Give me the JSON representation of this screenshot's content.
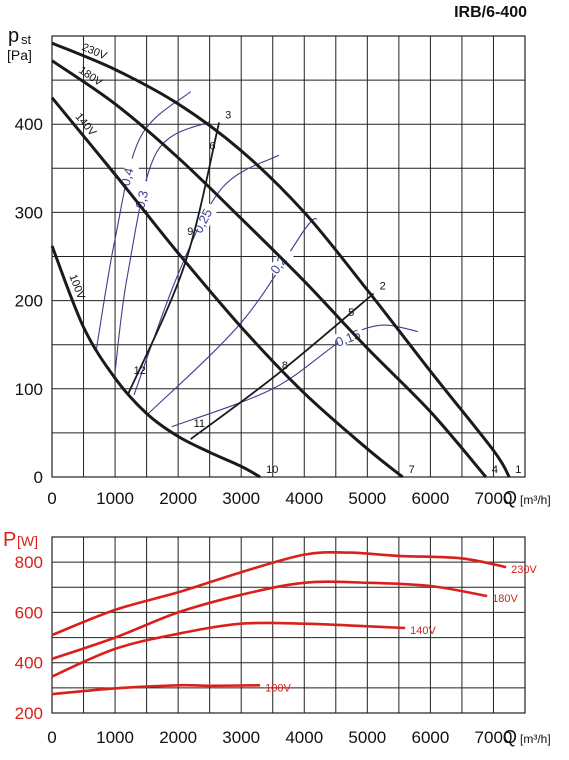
{
  "model": "IRB/6-400",
  "colors": {
    "curve": "#1a1a1a",
    "efficiency": "#3b3f8f",
    "power": "#d9201a",
    "grid": "#222222",
    "axis_label_power": "#d9201a"
  },
  "chart_data": [
    {
      "type": "line",
      "ylabel_main": "p",
      "ylabel_sub": "st",
      "ylabel_unit": "[Pa]",
      "xlabel": "Q",
      "xunit": "[m³/h]",
      "xlim": [
        0,
        7500
      ],
      "ylim": [
        0,
        500
      ],
      "x_ticks": [
        0,
        1000,
        2000,
        3000,
        4000,
        5000,
        6000,
        7000
      ],
      "y_ticks": [
        0,
        100,
        200,
        300,
        400
      ],
      "grid": true,
      "series": [
        {
          "name": "230V",
          "points": [
            [
              0,
              492
            ],
            [
              1000,
              462
            ],
            [
              2000,
              423
            ],
            [
              3000,
              370
            ],
            [
              4000,
              300
            ],
            [
              5000,
              212
            ],
            [
              6000,
              120
            ],
            [
              7000,
              30
            ],
            [
              7250,
              0
            ]
          ]
        },
        {
          "name": "180V",
          "points": [
            [
              0,
              472
            ],
            [
              1000,
              423
            ],
            [
              2000,
              362
            ],
            [
              3000,
              293
            ],
            [
              4000,
              222
            ],
            [
              5000,
              146
            ],
            [
              6000,
              74
            ],
            [
              6880,
              0
            ]
          ]
        },
        {
          "name": "140V",
          "points": [
            [
              0,
              430
            ],
            [
              1000,
              343
            ],
            [
              2000,
              254
            ],
            [
              3000,
              170
            ],
            [
              4000,
              95
            ],
            [
              5000,
              32
            ],
            [
              5560,
              0
            ]
          ]
        },
        {
          "name": "100V",
          "points": [
            [
              0,
              262
            ],
            [
              500,
              170
            ],
            [
              1000,
              112
            ],
            [
              1500,
              72
            ],
            [
              2000,
              46
            ],
            [
              2500,
              28
            ],
            [
              3000,
              12
            ],
            [
              3300,
              0
            ]
          ]
        }
      ],
      "system_lines": [
        {
          "points": [
            [
              1200,
              93
            ],
            [
              2100,
              240
            ],
            [
              2650,
              402
            ]
          ]
        },
        {
          "points": [
            [
              2200,
              43
            ],
            [
              3600,
              118
            ],
            [
              5100,
              208
            ]
          ]
        }
      ],
      "efficiency_curves": [
        {
          "label": "0,4",
          "points": [
            [
              700,
              143
            ],
            [
              1000,
              270
            ],
            [
              1400,
              385
            ],
            [
              2200,
              437
            ]
          ]
        },
        {
          "label": "0,3",
          "points": [
            [
              1000,
              120
            ],
            [
              1200,
              230
            ],
            [
              1650,
              367
            ],
            [
              2500,
              403
            ]
          ]
        },
        {
          "label": "0,25",
          "points": [
            [
              1300,
              93
            ],
            [
              2000,
              230
            ],
            [
              2700,
              328
            ],
            [
              3600,
              365
            ]
          ]
        },
        {
          "label": "0,2",
          "points": [
            [
              1500,
              70
            ],
            [
              3000,
              175
            ],
            [
              4000,
              280
            ],
            [
              4200,
              293
            ]
          ]
        },
        {
          "label": "0,15",
          "points": [
            [
              1900,
              57
            ],
            [
              3500,
              100
            ],
            [
              4600,
              155
            ],
            [
              5200,
              172
            ],
            [
              5800,
              165
            ]
          ]
        }
      ],
      "point_labels": [
        {
          "label": "1",
          "x": 7250,
          "y": 0
        },
        {
          "label": "2",
          "x": 5100,
          "y": 208
        },
        {
          "label": "3",
          "x": 2650,
          "y": 402
        },
        {
          "label": "4",
          "x": 6880,
          "y": 0
        },
        {
          "label": "5",
          "x": 4600,
          "y": 178
        },
        {
          "label": "6",
          "x": 2400,
          "y": 367
        },
        {
          "label": "7",
          "x": 5560,
          "y": 0
        },
        {
          "label": "8",
          "x": 3550,
          "y": 118
        },
        {
          "label": "9",
          "x": 2050,
          "y": 270
        },
        {
          "label": "10",
          "x": 3300,
          "y": 0
        },
        {
          "label": "11",
          "x": 2150,
          "y": 52
        },
        {
          "label": "12",
          "x": 1200,
          "y": 112
        }
      ]
    },
    {
      "type": "line",
      "ylabel_main": "P",
      "ylabel_unit": "[W]",
      "xlabel": "Q",
      "xunit": "[m³/h]",
      "xlim": [
        0,
        7500
      ],
      "ylim": [
        200,
        900
      ],
      "x_ticks": [
        0,
        1000,
        2000,
        3000,
        4000,
        5000,
        6000,
        7000
      ],
      "y_ticks": [
        200,
        400,
        600,
        800
      ],
      "grid": true,
      "series": [
        {
          "name": "230V",
          "points": [
            [
              0,
              510
            ],
            [
              1000,
              610
            ],
            [
              2000,
              680
            ],
            [
              3000,
              760
            ],
            [
              4000,
              830
            ],
            [
              4700,
              838
            ],
            [
              5500,
              825
            ],
            [
              6500,
              815
            ],
            [
              7200,
              780
            ]
          ]
        },
        {
          "name": "180V",
          "points": [
            [
              0,
              415
            ],
            [
              1000,
              500
            ],
            [
              2000,
              600
            ],
            [
              3000,
              670
            ],
            [
              4000,
              718
            ],
            [
              5000,
              718
            ],
            [
              6000,
              705
            ],
            [
              6900,
              665
            ]
          ]
        },
        {
          "name": "140V",
          "points": [
            [
              0,
              345
            ],
            [
              1000,
              455
            ],
            [
              2000,
              515
            ],
            [
              3000,
              555
            ],
            [
              4000,
              555
            ],
            [
              5000,
              545
            ],
            [
              5600,
              538
            ]
          ]
        },
        {
          "name": "100V",
          "points": [
            [
              0,
              275
            ],
            [
              1000,
              298
            ],
            [
              2000,
              310
            ],
            [
              2500,
              308
            ],
            [
              3300,
              310
            ]
          ]
        }
      ]
    }
  ]
}
